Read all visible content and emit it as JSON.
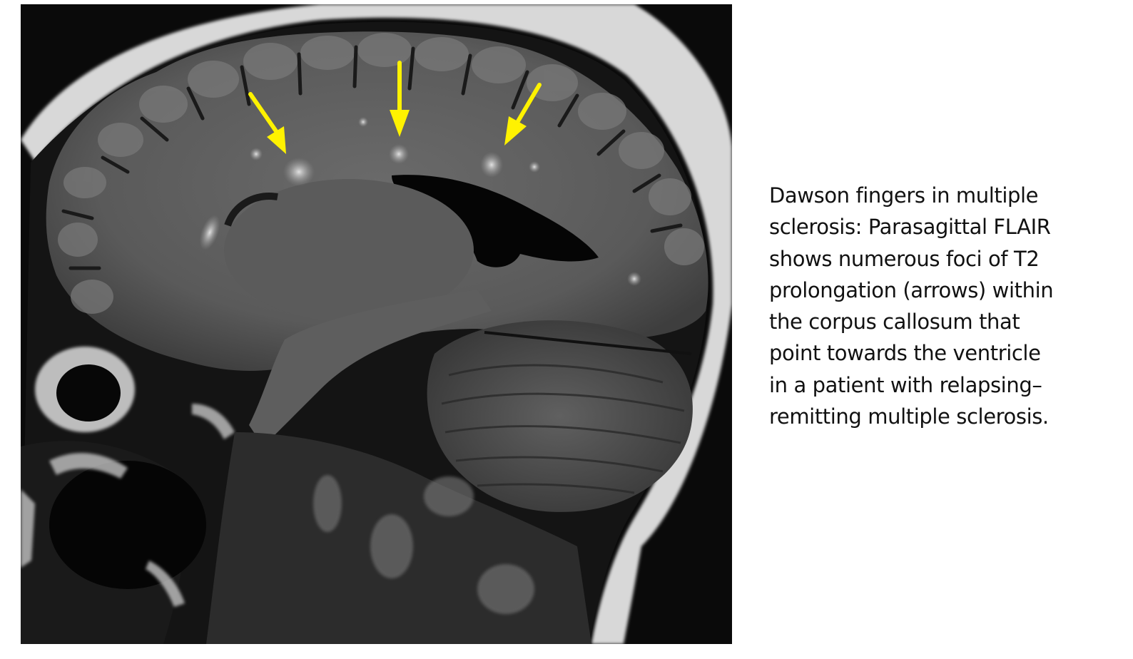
{
  "figure": {
    "caption": "Dawson fingers in multiple\nsclerosis: Parasagittal FLAIR\nshows numerous foci of T2\nprolongation (arrows) within\nthe corpus callosum that\npoint towards the ventricle\nin a patient with relapsing–\nremitting multiple sclerosis.",
    "arrow_color": "#fff200",
    "arrow_count": 3
  }
}
